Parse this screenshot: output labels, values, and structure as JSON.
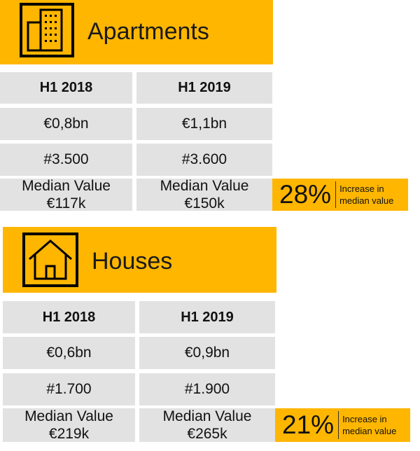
{
  "apartments": {
    "title": "Apartments",
    "icon": "building-icon",
    "col1_header": "H1 2018",
    "col2_header": "H1 2019",
    "rows": [
      {
        "col1": "€0,8bn",
        "col2": "€1,1bn"
      },
      {
        "col1": "#3.500",
        "col2": "#3.600"
      }
    ],
    "median_label": "Median Value",
    "median_col1": "€117k",
    "median_col2": "€150k",
    "badge_percent": "28%",
    "badge_text_line1": "Increase in",
    "badge_text_line2": "median value"
  },
  "houses": {
    "title": "Houses",
    "icon": "house-icon",
    "col1_header": "H1 2018",
    "col2_header": "H1 2019",
    "rows": [
      {
        "col1": "€0,6bn",
        "col2": "€0,9bn"
      },
      {
        "col1": "#1.700",
        "col2": "#1.900"
      }
    ],
    "median_label": "Median Value",
    "median_col1": "€219k",
    "median_col2": "€265k",
    "badge_percent": "21%",
    "badge_text_line1": "Increase in",
    "badge_text_line2": "median value"
  },
  "colors": {
    "accent": "#ffb600",
    "cell_bg": "#e2e2e2"
  }
}
